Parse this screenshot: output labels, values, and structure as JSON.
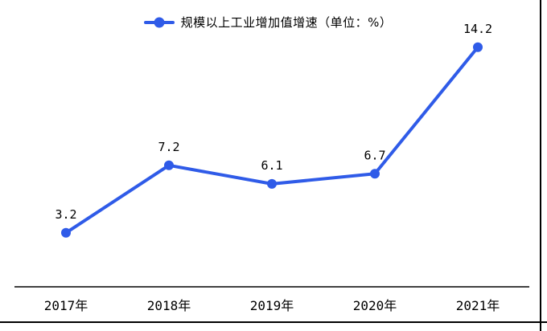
{
  "legend": {
    "label": "规模以上工业增加值增速（单位：%）"
  },
  "chart_data": {
    "type": "line",
    "title": "",
    "xlabel": "",
    "ylabel": "",
    "categories": [
      "2017年",
      "2018年",
      "2019年",
      "2020年",
      "2021年"
    ],
    "series": [
      {
        "name": "规模以上工业增加值增速（单位：%）",
        "values": [
          3.2,
          7.2,
          6.1,
          6.7,
          14.2
        ]
      }
    ],
    "data_labels": [
      "3.2",
      "7.2",
      "6.1",
      "6.7",
      "14.2"
    ],
    "ylim": [
      0,
      17
    ],
    "grid": false,
    "legend_position": "top-center",
    "axes": {
      "x_baseline_shown": true,
      "y_axis_shown": false,
      "tick_labels_shown": "x-only"
    },
    "colors": {
      "series": "#2f5be8",
      "axis": "#000000",
      "text": "#000000",
      "background": "#ffffff",
      "frame_border": "#000000"
    }
  }
}
